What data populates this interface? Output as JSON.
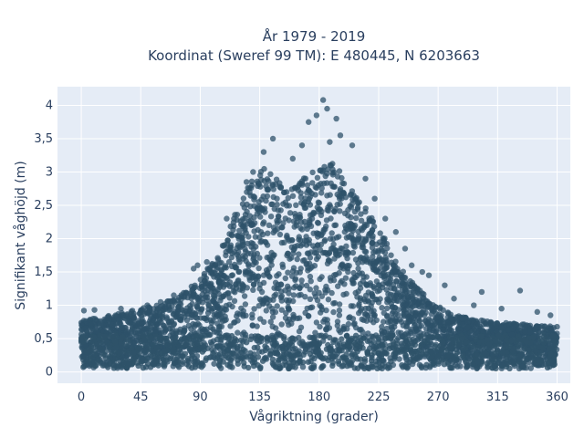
{
  "chart_data": {
    "type": "scatter",
    "title_line1": "År 1979 - 2019",
    "title_line2": "Koordinat (Sweref 99 TM): E 480445, N 6203663",
    "xlabel": "Vågriktning (grader)",
    "ylabel": "Signifikant våghöjd (m)",
    "xlim": [
      -18,
      370
    ],
    "ylim": [
      -0.17,
      4.28
    ],
    "x_ticks": [
      0,
      45,
      90,
      135,
      180,
      225,
      270,
      315,
      360
    ],
    "x_tick_labels": [
      "0",
      "45",
      "90",
      "135",
      "180",
      "225",
      "270",
      "315",
      "360"
    ],
    "y_ticks": [
      0,
      0.5,
      1,
      1.5,
      2,
      2.5,
      3,
      3.5,
      4
    ],
    "y_tick_labels": [
      "0",
      "0,5",
      "1",
      "1,5",
      "2",
      "2,5",
      "3",
      "3,5",
      "4"
    ],
    "grid": true,
    "marker_color": "#2e5269",
    "plot_bg": "#e5ecf6",
    "envelope": [
      {
        "x": 0,
        "y": 0.78
      },
      {
        "x": 15,
        "y": 0.82
      },
      {
        "x": 30,
        "y": 0.88
      },
      {
        "x": 45,
        "y": 0.95
      },
      {
        "x": 60,
        "y": 1.02
      },
      {
        "x": 75,
        "y": 1.15
      },
      {
        "x": 90,
        "y": 1.4
      },
      {
        "x": 105,
        "y": 1.8
      },
      {
        "x": 120,
        "y": 2.55
      },
      {
        "x": 130,
        "y": 2.95
      },
      {
        "x": 140,
        "y": 3.15
      },
      {
        "x": 150,
        "y": 2.85
      },
      {
        "x": 160,
        "y": 2.75
      },
      {
        "x": 170,
        "y": 2.95
      },
      {
        "x": 180,
        "y": 3.1
      },
      {
        "x": 190,
        "y": 3.15
      },
      {
        "x": 200,
        "y": 2.9
      },
      {
        "x": 210,
        "y": 2.6
      },
      {
        "x": 225,
        "y": 2.2
      },
      {
        "x": 240,
        "y": 1.6
      },
      {
        "x": 255,
        "y": 1.25
      },
      {
        "x": 270,
        "y": 0.98
      },
      {
        "x": 285,
        "y": 0.85
      },
      {
        "x": 300,
        "y": 0.78
      },
      {
        "x": 315,
        "y": 0.75
      },
      {
        "x": 330,
        "y": 0.72
      },
      {
        "x": 345,
        "y": 0.7
      },
      {
        "x": 360,
        "y": 0.68
      }
    ],
    "outliers": [
      {
        "x": 183,
        "y": 4.08
      },
      {
        "x": 178,
        "y": 3.85
      },
      {
        "x": 186,
        "y": 3.95
      },
      {
        "x": 193,
        "y": 3.8
      },
      {
        "x": 172,
        "y": 3.75
      },
      {
        "x": 196,
        "y": 3.55
      },
      {
        "x": 188,
        "y": 3.45
      },
      {
        "x": 167,
        "y": 3.4
      },
      {
        "x": 205,
        "y": 3.4
      },
      {
        "x": 145,
        "y": 3.5
      },
      {
        "x": 138,
        "y": 3.3
      },
      {
        "x": 160,
        "y": 3.2
      },
      {
        "x": 215,
        "y": 2.9
      },
      {
        "x": 222,
        "y": 2.6
      },
      {
        "x": 230,
        "y": 2.3
      },
      {
        "x": 238,
        "y": 2.1
      },
      {
        "x": 245,
        "y": 1.85
      },
      {
        "x": 250,
        "y": 1.6
      },
      {
        "x": 258,
        "y": 1.5
      },
      {
        "x": 263,
        "y": 1.45
      },
      {
        "x": 275,
        "y": 1.3
      },
      {
        "x": 282,
        "y": 1.1
      },
      {
        "x": 297,
        "y": 1.0
      },
      {
        "x": 303,
        "y": 1.2
      },
      {
        "x": 318,
        "y": 0.95
      },
      {
        "x": 332,
        "y": 1.22
      },
      {
        "x": 345,
        "y": 0.9
      },
      {
        "x": 355,
        "y": 0.85
      },
      {
        "x": 85,
        "y": 1.55
      },
      {
        "x": 88,
        "y": 1.6
      },
      {
        "x": 95,
        "y": 1.65
      },
      {
        "x": 70,
        "y": 1.15
      },
      {
        "x": 60,
        "y": 1.05
      },
      {
        "x": 50,
        "y": 1.0
      },
      {
        "x": 30,
        "y": 0.95
      },
      {
        "x": 2,
        "y": 0.92
      },
      {
        "x": 10,
        "y": 0.93
      },
      {
        "x": 110,
        "y": 2.3
      },
      {
        "x": 125,
        "y": 2.85
      },
      {
        "x": 130,
        "y": 3.0
      }
    ]
  }
}
